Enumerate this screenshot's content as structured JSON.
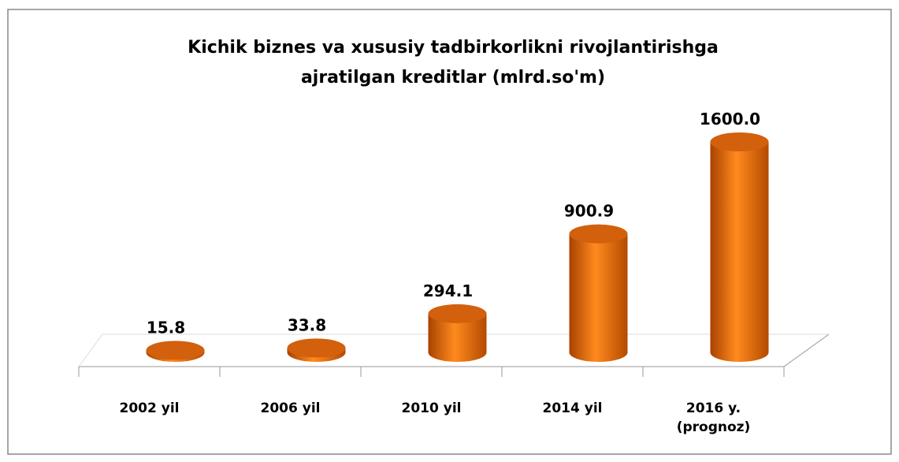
{
  "chart_data": {
    "type": "bar3d",
    "title": "Kichik biznes va xususiy tadbirkorlikni rivojlantirishga ajratilgan kreditlar (mlrd.so'm)",
    "categories": [
      "2002 yil",
      "2006 yil",
      "2010 yil",
      "2014 yil",
      "2016 y. (prognoz)"
    ],
    "values": [
      15.8,
      33.8,
      294.1,
      900.9,
      1600
    ],
    "value_labels": [
      "15.8",
      "33.8",
      "294.1",
      "900.9",
      "1600.0"
    ],
    "color": "#e8700c"
  }
}
